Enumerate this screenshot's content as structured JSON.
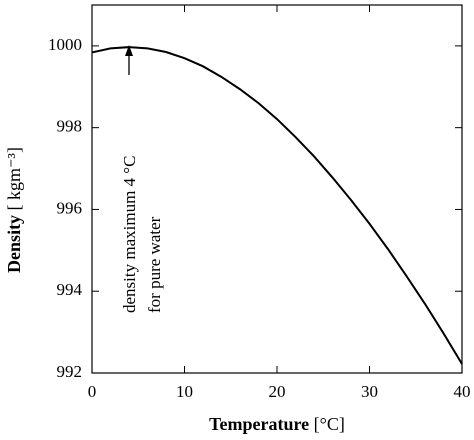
{
  "chart_data": {
    "type": "line",
    "x_label": "Temperature",
    "x_unit": "[°C]",
    "y_label": "Density",
    "y_unit": "[ kgm⁻³]",
    "annotation": [
      "density maximum 4 °C",
      "for pure water"
    ],
    "x": [
      0,
      2,
      4,
      6,
      8,
      10,
      12,
      14,
      16,
      18,
      20,
      22,
      24,
      26,
      28,
      30,
      32,
      34,
      36,
      38,
      40
    ],
    "values": [
      999.84,
      999.94,
      999.97,
      999.94,
      999.85,
      999.7,
      999.5,
      999.24,
      998.94,
      998.6,
      998.21,
      997.77,
      997.3,
      996.78,
      996.23,
      995.65,
      995.03,
      994.37,
      993.69,
      992.97,
      992.22
    ],
    "color": "#000000",
    "xlim": [
      0,
      40
    ],
    "xticks": [
      0,
      10,
      20,
      30,
      40
    ],
    "ylim": [
      992,
      1001
    ],
    "yticks": [
      992,
      994,
      996,
      998,
      1000
    ],
    "grid": false
  }
}
